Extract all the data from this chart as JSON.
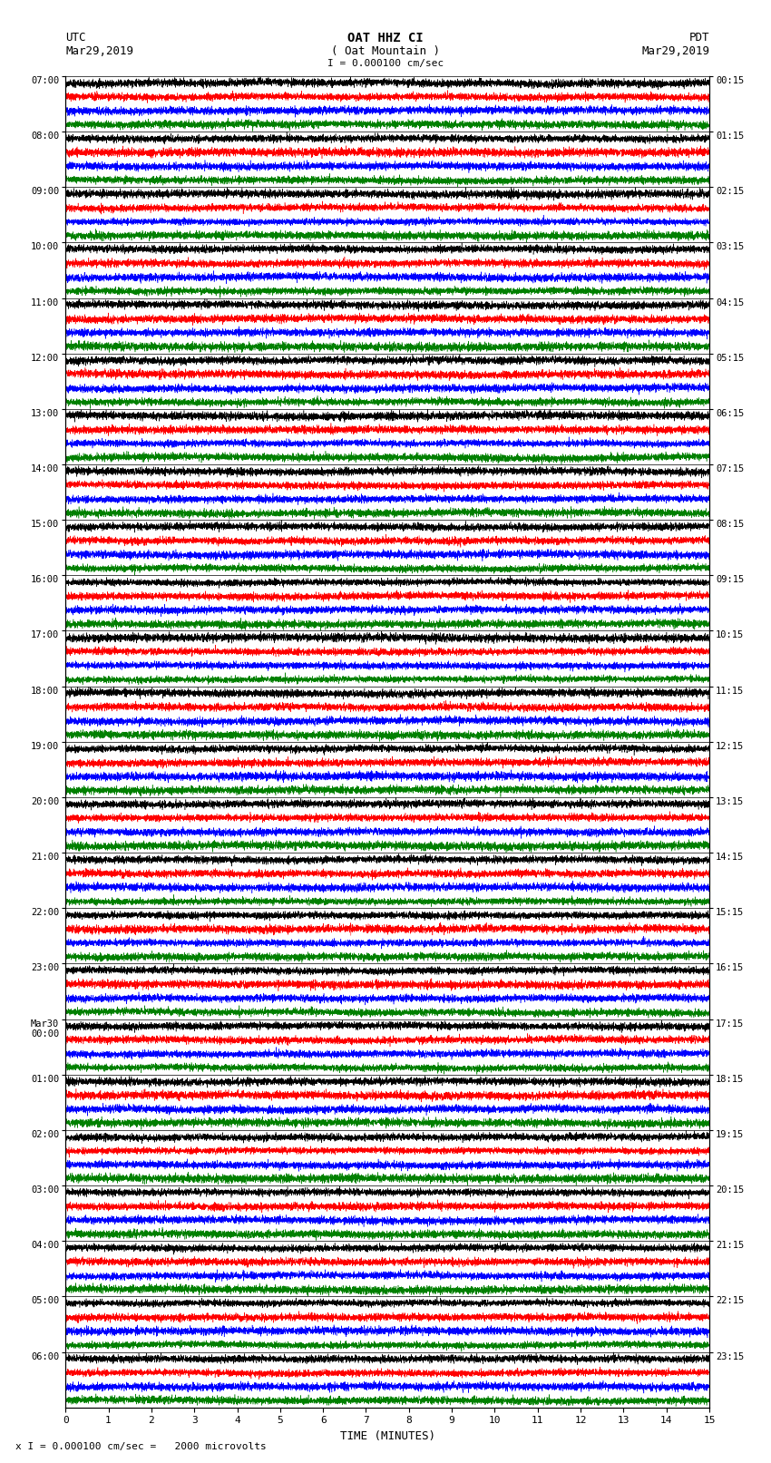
{
  "title_line1": "OAT HHZ CI",
  "title_line2": "( Oat Mountain )",
  "title_line3": "I = 0.000100 cm/sec",
  "left_header_line1": "UTC",
  "left_header_line2": "Mar29,2019",
  "right_header_line1": "PDT",
  "right_header_line2": "Mar29,2019",
  "xlabel": "TIME (MINUTES)",
  "footer": "x I = 0.000100 cm/sec =   2000 microvolts",
  "xmin": 0,
  "xmax": 15,
  "xticks": [
    0,
    1,
    2,
    3,
    4,
    5,
    6,
    7,
    8,
    9,
    10,
    11,
    12,
    13,
    14,
    15
  ],
  "left_times": [
    "07:00",
    "08:00",
    "09:00",
    "10:00",
    "11:00",
    "12:00",
    "13:00",
    "14:00",
    "15:00",
    "16:00",
    "17:00",
    "18:00",
    "19:00",
    "20:00",
    "21:00",
    "22:00",
    "23:00",
    "Mar30\n00:00",
    "01:00",
    "02:00",
    "03:00",
    "04:00",
    "05:00",
    "06:00"
  ],
  "right_times": [
    "00:15",
    "01:15",
    "02:15",
    "03:15",
    "04:15",
    "05:15",
    "06:15",
    "07:15",
    "08:15",
    "09:15",
    "10:15",
    "11:15",
    "12:15",
    "13:15",
    "14:15",
    "15:15",
    "16:15",
    "17:15",
    "18:15",
    "19:15",
    "20:15",
    "21:15",
    "22:15",
    "23:15"
  ],
  "num_rows": 24,
  "traces_per_row": 4,
  "colors": [
    "black",
    "red",
    "blue",
    "green"
  ],
  "bg_color": "white",
  "trace_amplitude": 0.48,
  "figsize": [
    8.5,
    16.13
  ],
  "dpi": 100
}
